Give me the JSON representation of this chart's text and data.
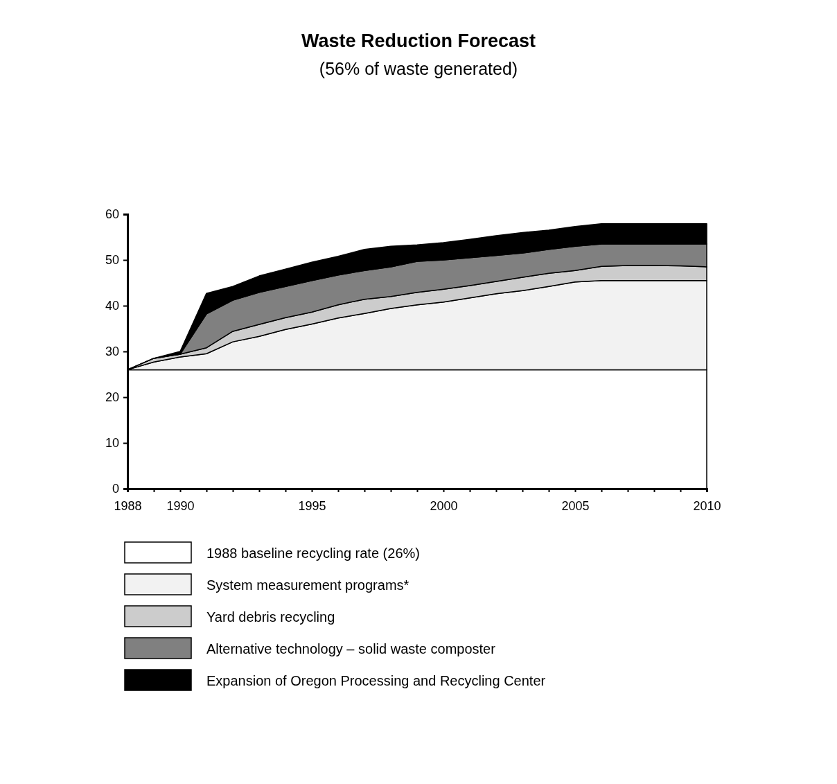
{
  "chart_data": {
    "type": "area",
    "stacked": true,
    "title": "Waste Reduction Forecast",
    "subtitle": "(56% of waste generated)",
    "x": [
      1988,
      1989,
      1990,
      1991,
      1992,
      1993,
      1994,
      1995,
      1996,
      1997,
      1998,
      1999,
      2000,
      2001,
      2002,
      2003,
      2004,
      2005,
      2006,
      2007,
      2008,
      2009,
      2010
    ],
    "series": [
      {
        "name": "1988 baseline recycling rate (26%)",
        "color": "#ffffff",
        "values": [
          26,
          26,
          26,
          26,
          26,
          26,
          26,
          26,
          26,
          26,
          26,
          26,
          26,
          26,
          26,
          26,
          26,
          26,
          26,
          26,
          26,
          26,
          26
        ]
      },
      {
        "name": "System measurement programs*",
        "color": "#f2f2f2",
        "values": [
          0,
          1.7,
          2.8,
          3.5,
          6.1,
          7.3,
          8.8,
          10,
          11.3,
          12.3,
          13.4,
          14.2,
          14.8,
          15.7,
          16.6,
          17.3,
          18.2,
          19.2,
          19.5,
          19.5,
          19.5,
          19.5,
          19.5
        ]
      },
      {
        "name": "Yard debris recycling",
        "color": "#cccccc",
        "values": [
          0,
          0.8,
          0.6,
          1.3,
          2.3,
          2.6,
          2.6,
          2.6,
          2.9,
          3.1,
          2.6,
          2.7,
          2.8,
          2.7,
          2.7,
          2.9,
          2.9,
          2.5,
          3.1,
          3.3,
          3.3,
          3.2,
          3.0
        ]
      },
      {
        "name": "Alternative technology – solid waste composter",
        "color": "#808080",
        "values": [
          0,
          0,
          0,
          7.4,
          6.8,
          7,
          6.8,
          6.9,
          6.5,
          6.3,
          6.5,
          6.8,
          6.4,
          6.1,
          5.7,
          5.3,
          5.2,
          5.3,
          4.9,
          4.7,
          4.7,
          4.8,
          5.0
        ]
      },
      {
        "name": "Expansion of Oregon Processing and Recycling Center",
        "color": "#000000",
        "values": [
          0,
          0,
          0.6,
          4.5,
          3,
          3.6,
          3.8,
          4,
          4.1,
          4.6,
          4.5,
          3.6,
          3.8,
          4,
          4.3,
          4.5,
          4.2,
          4.3,
          4.4,
          4.4,
          4.4,
          4.4,
          4.4
        ]
      }
    ],
    "xlim": [
      1988,
      2010
    ],
    "xticks": [
      1988,
      {
        "value": 1989,
        "label": null
      },
      1990,
      {
        "value": 1991,
        "label": null
      },
      {
        "value": 1992,
        "label": null
      },
      {
        "value": 1993,
        "label": null
      },
      {
        "value": 1994,
        "label": null
      },
      1995,
      {
        "value": 1996,
        "label": null
      },
      {
        "value": 1997,
        "label": null
      },
      {
        "value": 1998,
        "label": null
      },
      {
        "value": 1999,
        "label": null
      },
      2000,
      {
        "value": 2001,
        "label": null
      },
      {
        "value": 2002,
        "label": null
      },
      {
        "value": 2003,
        "label": null
      },
      {
        "value": 2004,
        "label": null
      },
      2005,
      {
        "value": 2006,
        "label": null
      },
      {
        "value": 2007,
        "label": null
      },
      {
        "value": 2008,
        "label": null
      },
      {
        "value": 2009,
        "label": null
      },
      2010
    ],
    "ylim": [
      0,
      60
    ],
    "yticks": [
      0,
      10,
      20,
      30,
      40,
      50,
      60
    ],
    "legend": "bottom",
    "grid": false
  }
}
